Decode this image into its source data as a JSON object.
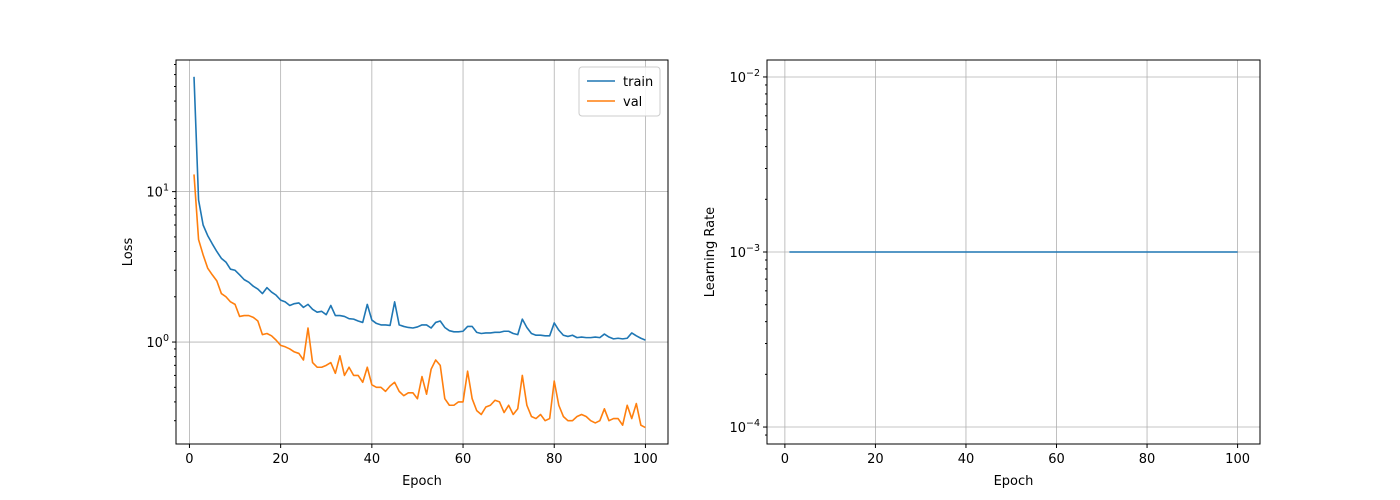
{
  "chart_data": [
    {
      "type": "line",
      "xlabel": "Epoch",
      "ylabel": "Loss",
      "yscale": "log",
      "xlim": [
        -2.95,
        104.95
      ],
      "ylim": [
        0.21,
        75
      ],
      "xticks": [
        0,
        20,
        40,
        60,
        80,
        100
      ],
      "yticks": [
        1,
        10
      ],
      "ytick_labels": [
        "10^0",
        "10^1"
      ],
      "grid": true,
      "legend": "top-right",
      "x": [
        1,
        2,
        3,
        4,
        5,
        6,
        7,
        8,
        9,
        10,
        11,
        12,
        13,
        14,
        15,
        16,
        17,
        18,
        19,
        20,
        21,
        22,
        23,
        24,
        25,
        26,
        27,
        28,
        29,
        30,
        31,
        32,
        33,
        34,
        35,
        36,
        37,
        38,
        39,
        40,
        41,
        42,
        43,
        44,
        45,
        46,
        47,
        48,
        49,
        50,
        51,
        52,
        53,
        54,
        55,
        56,
        57,
        58,
        59,
        60,
        61,
        62,
        63,
        64,
        65,
        66,
        67,
        68,
        69,
        70,
        71,
        72,
        73,
        74,
        75,
        76,
        77,
        78,
        79,
        80,
        81,
        82,
        83,
        84,
        85,
        86,
        87,
        88,
        89,
        90,
        91,
        92,
        93,
        94,
        95,
        96,
        97,
        98,
        99,
        100
      ],
      "series": [
        {
          "name": "train",
          "color": "#1f77b4",
          "values": [
            58,
            8.8,
            6.0,
            5.1,
            4.5,
            4.0,
            3.6,
            3.4,
            3.05,
            3.0,
            2.8,
            2.6,
            2.5,
            2.35,
            2.25,
            2.1,
            2.3,
            2.15,
            2.05,
            1.9,
            1.85,
            1.75,
            1.8,
            1.82,
            1.7,
            1.78,
            1.65,
            1.58,
            1.6,
            1.52,
            1.75,
            1.5,
            1.5,
            1.48,
            1.43,
            1.42,
            1.38,
            1.35,
            1.78,
            1.4,
            1.33,
            1.3,
            1.3,
            1.29,
            1.85,
            1.3,
            1.27,
            1.25,
            1.24,
            1.26,
            1.3,
            1.3,
            1.24,
            1.35,
            1.38,
            1.25,
            1.19,
            1.17,
            1.17,
            1.18,
            1.27,
            1.27,
            1.16,
            1.14,
            1.15,
            1.15,
            1.16,
            1.16,
            1.18,
            1.18,
            1.14,
            1.12,
            1.42,
            1.25,
            1.14,
            1.11,
            1.11,
            1.1,
            1.1,
            1.34,
            1.2,
            1.11,
            1.09,
            1.11,
            1.07,
            1.08,
            1.07,
            1.07,
            1.08,
            1.07,
            1.13,
            1.08,
            1.05,
            1.06,
            1.05,
            1.06,
            1.15,
            1.1,
            1.06,
            1.03
          ]
        },
        {
          "name": "val",
          "color": "#ff7f0e",
          "values": [
            13,
            4.8,
            3.8,
            3.1,
            2.8,
            2.55,
            2.1,
            2.0,
            1.85,
            1.78,
            1.48,
            1.5,
            1.5,
            1.46,
            1.38,
            1.12,
            1.14,
            1.1,
            1.03,
            0.95,
            0.93,
            0.9,
            0.86,
            0.84,
            0.76,
            1.24,
            0.73,
            0.68,
            0.68,
            0.7,
            0.73,
            0.62,
            0.81,
            0.6,
            0.68,
            0.6,
            0.6,
            0.54,
            0.68,
            0.52,
            0.5,
            0.5,
            0.47,
            0.51,
            0.54,
            0.47,
            0.44,
            0.46,
            0.46,
            0.42,
            0.59,
            0.45,
            0.66,
            0.76,
            0.7,
            0.42,
            0.38,
            0.38,
            0.4,
            0.4,
            0.64,
            0.42,
            0.35,
            0.33,
            0.37,
            0.38,
            0.41,
            0.4,
            0.34,
            0.38,
            0.33,
            0.36,
            0.6,
            0.38,
            0.32,
            0.31,
            0.33,
            0.3,
            0.31,
            0.55,
            0.38,
            0.32,
            0.3,
            0.3,
            0.32,
            0.33,
            0.32,
            0.3,
            0.29,
            0.3,
            0.36,
            0.3,
            0.31,
            0.31,
            0.28,
            0.38,
            0.31,
            0.39,
            0.28,
            0.27
          ]
        }
      ]
    },
    {
      "type": "line",
      "xlabel": "Epoch",
      "ylabel": "Learning Rate",
      "yscale": "log",
      "xlim": [
        -3.95,
        104.95
      ],
      "ylim": [
        8e-05,
        0.0125
      ],
      "xticks": [
        0,
        20,
        40,
        60,
        80,
        100
      ],
      "yticks": [
        0.0001,
        0.001,
        0.01
      ],
      "ytick_labels": [
        "10^-4",
        "10^-3",
        "10^-2"
      ],
      "grid": true,
      "x": [
        1,
        100
      ],
      "series": [
        {
          "color": "#1f77b4",
          "values": [
            0.001,
            0.001
          ]
        }
      ]
    }
  ]
}
